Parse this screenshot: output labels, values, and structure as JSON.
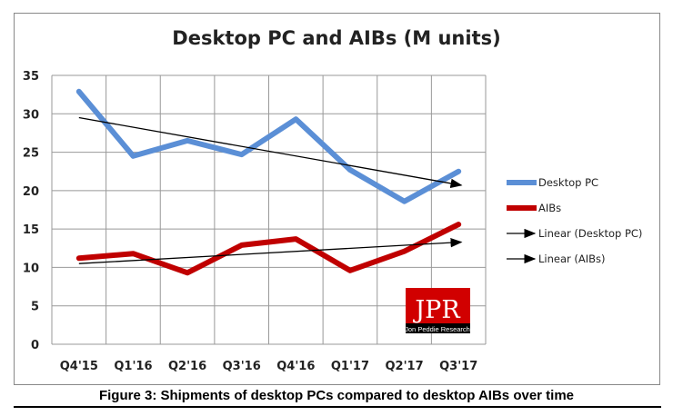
{
  "chart_data": {
    "type": "line",
    "title": "Desktop PC and AIBs (M units)",
    "caption": "Figure 3: Shipments of desktop PCs compared to desktop AIBs over time",
    "categories": [
      "Q4'15",
      "Q1'16",
      "Q2'16",
      "Q3'16",
      "Q4'16",
      "Q1'17",
      "Q2'17",
      "Q3'17"
    ],
    "ylim": [
      0,
      35
    ],
    "yticks": [
      0,
      5,
      10,
      15,
      20,
      25,
      30,
      35
    ],
    "grid": true,
    "legend_position": "right",
    "series": [
      {
        "name": "Desktop PC",
        "color": "#5b8fd6",
        "values": [
          32.9,
          24.5,
          26.5,
          24.7,
          29.3,
          22.7,
          18.6,
          22.5
        ]
      },
      {
        "name": "AIBs",
        "color": "#c00000",
        "values": [
          11.2,
          11.8,
          9.3,
          12.9,
          13.7,
          9.6,
          12.1,
          15.6
        ]
      }
    ],
    "trendlines": [
      {
        "name": "Linear (Desktop PC)",
        "color": "#000000",
        "start": 29.5,
        "end": 20.7
      },
      {
        "name": "Linear (AIBs)",
        "color": "#000000",
        "start": 10.5,
        "end": 13.3
      }
    ],
    "logo": {
      "text": "JPR",
      "subtitle": "Jon Peddie Research"
    }
  }
}
